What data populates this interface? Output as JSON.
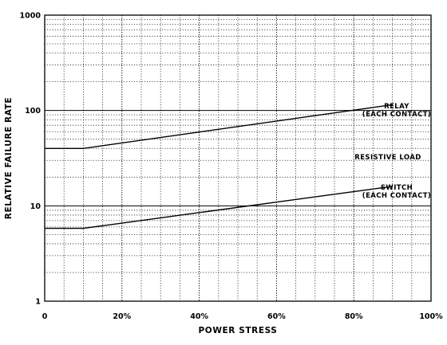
{
  "chart_data": {
    "type": "line",
    "title": "",
    "xlabel": "POWER STRESS",
    "ylabel": "RELATIVE FAILURE RATE",
    "xlim": [
      0,
      100
    ],
    "ylim": [
      1,
      1000
    ],
    "yscale": "log",
    "grid": true,
    "x_ticks": [
      {
        "value": 0,
        "label": "0"
      },
      {
        "value": 20,
        "label": "20%"
      },
      {
        "value": 40,
        "label": "40%"
      },
      {
        "value": 60,
        "label": "60%"
      },
      {
        "value": 80,
        "label": "80%"
      },
      {
        "value": 100,
        "label": "100%"
      }
    ],
    "y_ticks": [
      {
        "value": 1,
        "label": "1"
      },
      {
        "value": 10,
        "label": "10"
      },
      {
        "value": 100,
        "label": "100"
      },
      {
        "value": 1000,
        "label": "1000"
      }
    ],
    "series": [
      {
        "x": [
          0,
          10,
          90
        ],
        "y": [
          40,
          40,
          115
        ]
      },
      {
        "x": [
          0,
          10,
          90
        ],
        "y": [
          5.8,
          5.8,
          16
        ]
      }
    ],
    "annotations": {
      "relay_line1": "RELAY",
      "relay_line2": "(EACH CONTACT)",
      "load": "RESISTIVE LOAD",
      "switch_line1": "SWITCH",
      "switch_line2": "(EACH CONTACT)"
    }
  }
}
